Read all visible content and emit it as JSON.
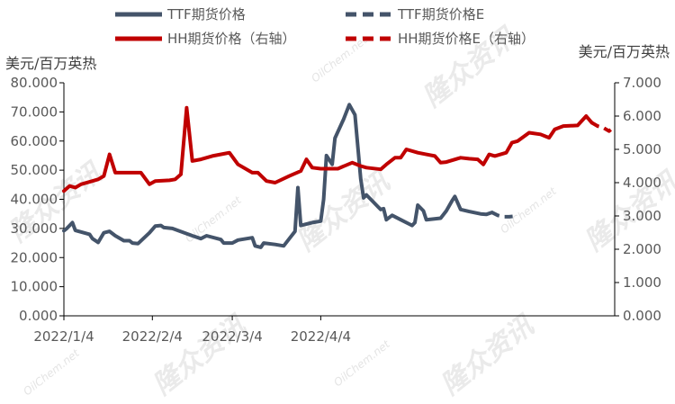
{
  "chart_data": {
    "type": "line",
    "left_unit": "美元/百万英热",
    "right_unit": "美元/百万英热",
    "left_ylim": [
      0,
      80
    ],
    "right_ylim": [
      0,
      7
    ],
    "left_ticks": [
      "0.000",
      "10.000",
      "20.000",
      "30.000",
      "40.000",
      "50.000",
      "60.000",
      "70.000",
      "80.000"
    ],
    "right_ticks": [
      "0.000",
      "1.000",
      "2.000",
      "3.000",
      "4.000",
      "5.000",
      "6.000",
      "7.000"
    ],
    "x_ticks": [
      "2022/1/4",
      "2022/2/4",
      "2022/3/4",
      "2022/4/4"
    ],
    "x_start": "2022-01-04",
    "x_end": "2022-04-18",
    "legend_position": "top",
    "watermark_text": "隆众资讯",
    "watermark_sub": "OilChem.net",
    "series": [
      {
        "name": "TTF期货价格",
        "axis": "left",
        "color": "#44546a",
        "style": "solid",
        "points": [
          [
            "2022-01-04",
            29.2
          ],
          [
            "2022-01-05",
            30.0
          ],
          [
            "2022-01-07",
            32.0
          ],
          [
            "2022-01-08",
            29.3
          ],
          [
            "2022-01-11",
            28.5
          ],
          [
            "2022-01-13",
            28.0
          ],
          [
            "2022-01-14",
            26.5
          ],
          [
            "2022-01-16",
            25.2
          ],
          [
            "2022-01-18",
            28.5
          ],
          [
            "2022-01-20",
            29.0
          ],
          [
            "2022-01-22",
            27.5
          ],
          [
            "2022-01-25",
            25.8
          ],
          [
            "2022-01-27",
            25.8
          ],
          [
            "2022-01-28",
            25.0
          ],
          [
            "2022-01-30",
            24.8
          ],
          [
            "2022-02-03",
            28.5
          ],
          [
            "2022-02-05",
            30.8
          ],
          [
            "2022-02-07",
            31.0
          ],
          [
            "2022-02-08",
            30.3
          ],
          [
            "2022-02-11",
            30.0
          ],
          [
            "2022-02-18",
            27.5
          ],
          [
            "2022-02-21",
            26.5
          ],
          [
            "2022-02-23",
            27.5
          ],
          [
            "2022-02-28",
            26.2
          ],
          [
            "2022-03-01",
            25.0
          ],
          [
            "2022-03-04",
            25.0
          ],
          [
            "2022-03-06",
            26.0
          ],
          [
            "2022-03-11",
            26.8
          ],
          [
            "2022-03-12",
            24.0
          ],
          [
            "2022-03-14",
            23.5
          ],
          [
            "2022-03-15",
            25.0
          ],
          [
            "2022-03-19",
            24.5
          ],
          [
            "2022-03-22",
            24.0
          ],
          [
            "2022-03-24",
            26.5
          ],
          [
            "2022-03-26",
            29.0
          ],
          [
            "2022-03-27",
            44.0
          ],
          [
            "2022-03-28",
            31.0
          ],
          [
            "2022-04-01",
            32.0
          ],
          [
            "2022-04-04",
            32.5
          ],
          [
            "2022-04-05",
            40.0
          ],
          [
            "2022-04-06",
            55.0
          ],
          [
            "2022-04-08",
            52.0
          ],
          [
            "2022-04-09",
            61.0
          ],
          [
            "2022-04-12",
            67.5
          ],
          [
            "2022-04-14",
            72.5
          ],
          [
            "2022-04-16",
            69.0
          ],
          [
            "2022-04-18",
            47.0
          ],
          [
            "2022-04-19",
            40.5
          ],
          [
            "2022-04-20",
            41.5
          ],
          [
            "2022-04-22",
            39.5
          ],
          [
            "2022-04-24",
            37.5
          ],
          [
            "2022-04-25",
            36.5
          ],
          [
            "2022-04-26",
            36.8
          ],
          [
            "2022-04-27",
            33.0
          ],
          [
            "2022-04-29",
            34.5
          ],
          [
            "2022-05-02",
            33.0
          ],
          [
            "2022-05-05",
            31.5
          ],
          [
            "2022-05-06",
            31.0
          ],
          [
            "2022-05-07",
            32.0
          ],
          [
            "2022-05-08",
            38.0
          ],
          [
            "2022-05-10",
            36.0
          ],
          [
            "2022-05-11",
            33.0
          ],
          [
            "2022-05-16",
            33.5
          ],
          [
            "2022-05-18",
            36.0
          ],
          [
            "2022-05-20",
            39.5
          ],
          [
            "2022-05-21",
            41.0
          ],
          [
            "2022-05-23",
            36.5
          ],
          [
            "2022-05-26",
            35.8
          ],
          [
            "2022-05-30",
            35.0
          ],
          [
            "2022-06-01",
            34.8
          ],
          [
            "2022-06-03",
            35.5
          ]
        ]
      },
      {
        "name": "TTF期货价格E",
        "axis": "left",
        "color": "#44546a",
        "style": "dashed",
        "points": [
          [
            "2022-06-03",
            35.5
          ],
          [
            "2022-06-05",
            34.5
          ],
          [
            "2022-06-07",
            34.0
          ],
          [
            "2022-06-09",
            34.0
          ],
          [
            "2022-06-11",
            34.2
          ]
        ]
      },
      {
        "name": "HH期货价格（右轴）",
        "axis": "right",
        "color": "#c00000",
        "style": "solid",
        "points": [
          [
            "2022-01-04",
            3.75
          ],
          [
            "2022-01-06",
            3.9
          ],
          [
            "2022-01-08",
            3.85
          ],
          [
            "2022-01-10",
            3.95
          ],
          [
            "2022-01-14",
            4.05
          ],
          [
            "2022-01-16",
            4.1
          ],
          [
            "2022-01-18",
            4.2
          ],
          [
            "2022-01-20",
            4.85
          ],
          [
            "2022-01-22",
            4.3
          ],
          [
            "2022-01-28",
            4.3
          ],
          [
            "2022-01-31",
            4.3
          ],
          [
            "2022-02-03",
            3.95
          ],
          [
            "2022-02-05",
            4.05
          ],
          [
            "2022-02-10",
            4.07
          ],
          [
            "2022-02-12",
            4.1
          ],
          [
            "2022-02-14",
            4.25
          ],
          [
            "2022-02-16",
            6.25
          ],
          [
            "2022-02-18",
            4.65
          ],
          [
            "2022-02-21",
            4.7
          ],
          [
            "2022-02-25",
            4.8
          ],
          [
            "2022-03-03",
            4.9
          ],
          [
            "2022-03-06",
            4.55
          ],
          [
            "2022-03-11",
            4.3
          ],
          [
            "2022-03-13",
            4.3
          ],
          [
            "2022-03-16",
            4.05
          ],
          [
            "2022-03-19",
            4.0
          ],
          [
            "2022-03-24",
            4.2
          ],
          [
            "2022-03-28",
            4.35
          ],
          [
            "2022-03-30",
            4.7
          ],
          [
            "2022-04-01",
            4.45
          ],
          [
            "2022-04-04",
            4.42
          ],
          [
            "2022-04-10",
            4.42
          ],
          [
            "2022-04-15",
            4.6
          ],
          [
            "2022-04-18",
            4.5
          ],
          [
            "2022-04-20",
            4.45
          ],
          [
            "2022-04-25",
            4.4
          ],
          [
            "2022-04-27",
            4.55
          ],
          [
            "2022-04-30",
            4.75
          ],
          [
            "2022-05-02",
            4.75
          ],
          [
            "2022-05-04",
            5.0
          ],
          [
            "2022-05-08",
            4.9
          ],
          [
            "2022-05-11",
            4.85
          ],
          [
            "2022-05-14",
            4.8
          ],
          [
            "2022-05-16",
            4.6
          ],
          [
            "2022-05-18",
            4.62
          ],
          [
            "2022-05-23",
            4.75
          ],
          [
            "2022-05-26",
            4.72
          ],
          [
            "2022-05-29",
            4.7
          ],
          [
            "2022-05-31",
            4.55
          ],
          [
            "2022-06-02",
            4.85
          ],
          [
            "2022-06-04",
            4.8
          ],
          [
            "2022-06-08",
            4.9
          ],
          [
            "2022-06-10",
            5.2
          ],
          [
            "2022-06-12",
            5.25
          ],
          [
            "2022-06-16",
            5.5
          ],
          [
            "2022-06-20",
            5.45
          ],
          [
            "2022-06-23",
            5.35
          ],
          [
            "2022-06-25",
            5.6
          ],
          [
            "2022-06-28",
            5.7
          ],
          [
            "2022-07-03",
            5.72
          ],
          [
            "2022-07-06",
            6.0
          ],
          [
            "2022-07-08",
            5.8
          ]
        ]
      },
      {
        "name": "HH期货价格E（右轴）",
        "axis": "right",
        "color": "#c00000",
        "style": "dashed",
        "points": [
          [
            "2022-07-08",
            5.8
          ],
          [
            "2022-07-10",
            5.7
          ],
          [
            "2022-07-12",
            5.65
          ],
          [
            "2022-07-14",
            5.55
          ],
          [
            "2022-07-16",
            5.7
          ]
        ]
      }
    ]
  }
}
